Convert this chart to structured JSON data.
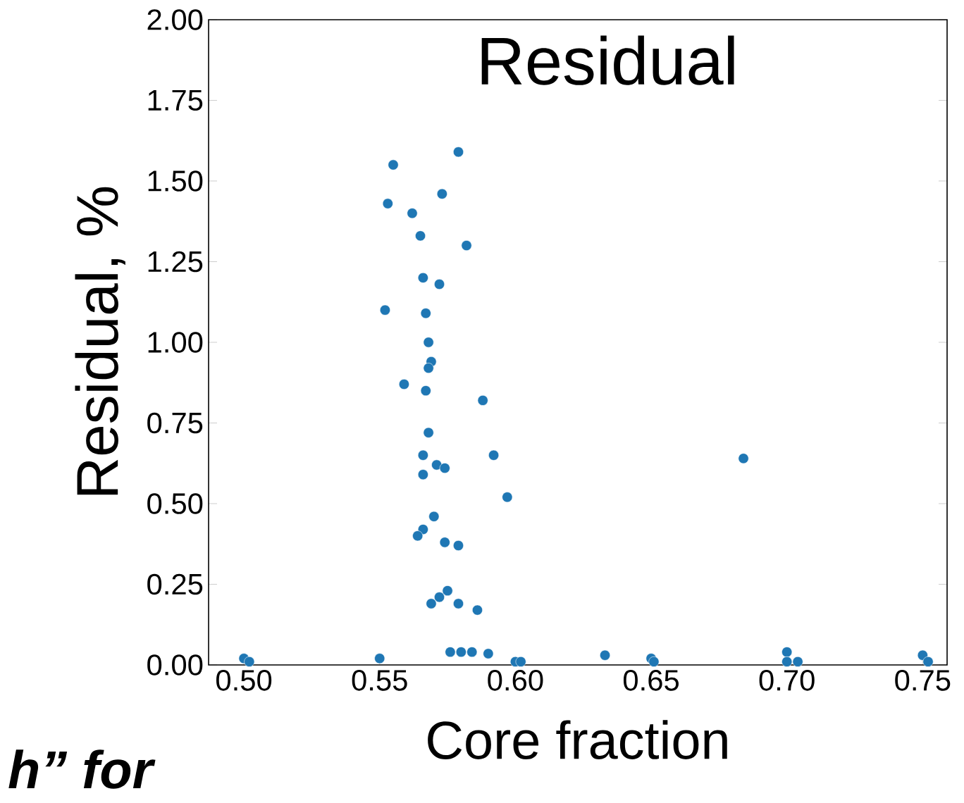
{
  "chart_data": {
    "type": "scatter",
    "title": "Residual",
    "xlabel": "Core fraction",
    "ylabel": "Residual, %",
    "annotations": [
      "h” for"
    ],
    "x": [
      0.579,
      0.555,
      0.553,
      0.573,
      0.562,
      0.565,
      0.582,
      0.566,
      0.572,
      0.552,
      0.567,
      0.568,
      0.569,
      0.568,
      0.559,
      0.567,
      0.588,
      0.568,
      0.566,
      0.592,
      0.571,
      0.574,
      0.566,
      0.597,
      0.57,
      0.566,
      0.564,
      0.574,
      0.579,
      0.575,
      0.572,
      0.569,
      0.579,
      0.586,
      0.576,
      0.58,
      0.584,
      0.59,
      0.5,
      0.502,
      0.55,
      0.6,
      0.602,
      0.633,
      0.65,
      0.651,
      0.7,
      0.7,
      0.704,
      0.75,
      0.752,
      0.684
    ],
    "values": [
      1.59,
      1.55,
      1.43,
      1.46,
      1.4,
      1.33,
      1.3,
      1.2,
      1.18,
      1.1,
      1.09,
      1.0,
      0.94,
      0.92,
      0.87,
      0.85,
      0.82,
      0.72,
      0.65,
      0.65,
      0.62,
      0.61,
      0.59,
      0.52,
      0.46,
      0.42,
      0.4,
      0.38,
      0.37,
      0.23,
      0.21,
      0.19,
      0.19,
      0.17,
      0.04,
      0.04,
      0.04,
      0.035,
      0.02,
      0.01,
      0.02,
      0.01,
      0.01,
      0.03,
      0.02,
      0.01,
      0.04,
      0.01,
      0.01,
      0.03,
      0.01,
      0.64
    ],
    "color": "#1f77b4",
    "marker": "circle",
    "xlim": [
      0.487,
      0.759
    ],
    "ylim": [
      0,
      2
    ],
    "xticks": [
      {
        "value": 0.5,
        "label": "0.50"
      },
      {
        "value": 0.55,
        "label": "0.55"
      },
      {
        "value": 0.6,
        "label": "0.60"
      },
      {
        "value": 0.65,
        "label": "0.65"
      },
      {
        "value": 0.7,
        "label": "0.70"
      },
      {
        "value": 0.75,
        "label": "0.75"
      }
    ],
    "yticks": [
      {
        "value": 0,
        "label": "0.00"
      },
      {
        "value": 0.25,
        "label": "0.25"
      },
      {
        "value": 0.5,
        "label": "0.50"
      },
      {
        "value": 0.75,
        "label": "0.75"
      },
      {
        "value": 1.0,
        "label": "1.00"
      },
      {
        "value": 1.25,
        "label": "1.25"
      },
      {
        "value": 1.5,
        "label": "1.50"
      },
      {
        "value": 1.75,
        "label": "1.75"
      },
      {
        "value": 2.0,
        "label": "2.00"
      }
    ]
  }
}
